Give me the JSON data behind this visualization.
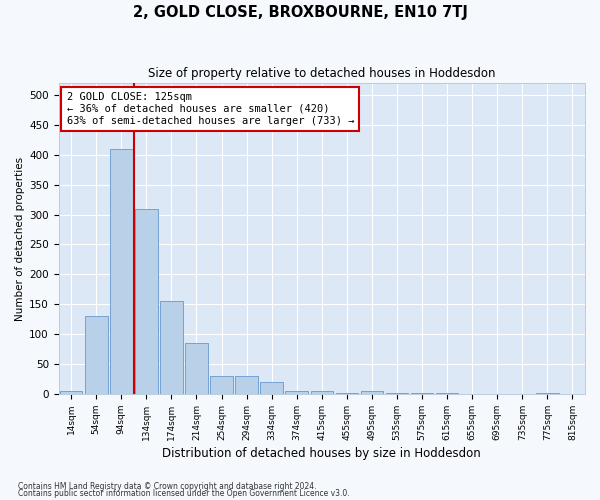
{
  "title": "2, GOLD CLOSE, BROXBOURNE, EN10 7TJ",
  "subtitle": "Size of property relative to detached houses in Hoddesdon",
  "xlabel": "Distribution of detached houses by size in Hoddesdon",
  "ylabel": "Number of detached properties",
  "footnote1": "Contains HM Land Registry data © Crown copyright and database right 2024.",
  "footnote2": "Contains public sector information licensed under the Open Government Licence v3.0.",
  "bar_color": "#b8d0e8",
  "bar_edge_color": "#6699cc",
  "bg_color": "#dce8f5",
  "grid_color": "#ffffff",
  "vline_color": "#cc0000",
  "annotation_text": "2 GOLD CLOSE: 125sqm\n← 36% of detached houses are smaller (420)\n63% of semi-detached houses are larger (733) →",
  "annotation_box_color": "#ffffff",
  "annotation_box_edge": "#cc0000",
  "ylim": [
    0,
    520
  ],
  "yticks": [
    0,
    50,
    100,
    150,
    200,
    250,
    300,
    350,
    400,
    450,
    500
  ],
  "categories": [
    "14sqm",
    "54sqm",
    "94sqm",
    "134sqm",
    "174sqm",
    "214sqm",
    "254sqm",
    "294sqm",
    "334sqm",
    "374sqm",
    "415sqm",
    "455sqm",
    "495sqm",
    "535sqm",
    "575sqm",
    "615sqm",
    "655sqm",
    "695sqm",
    "735sqm",
    "775sqm",
    "815sqm"
  ],
  "values": [
    5,
    130,
    410,
    310,
    155,
    85,
    30,
    30,
    20,
    5,
    5,
    1,
    5,
    1,
    1,
    1,
    0,
    0,
    0,
    1,
    0
  ],
  "fig_width": 6.0,
  "fig_height": 5.0,
  "fig_bg": "#f5f8fc"
}
